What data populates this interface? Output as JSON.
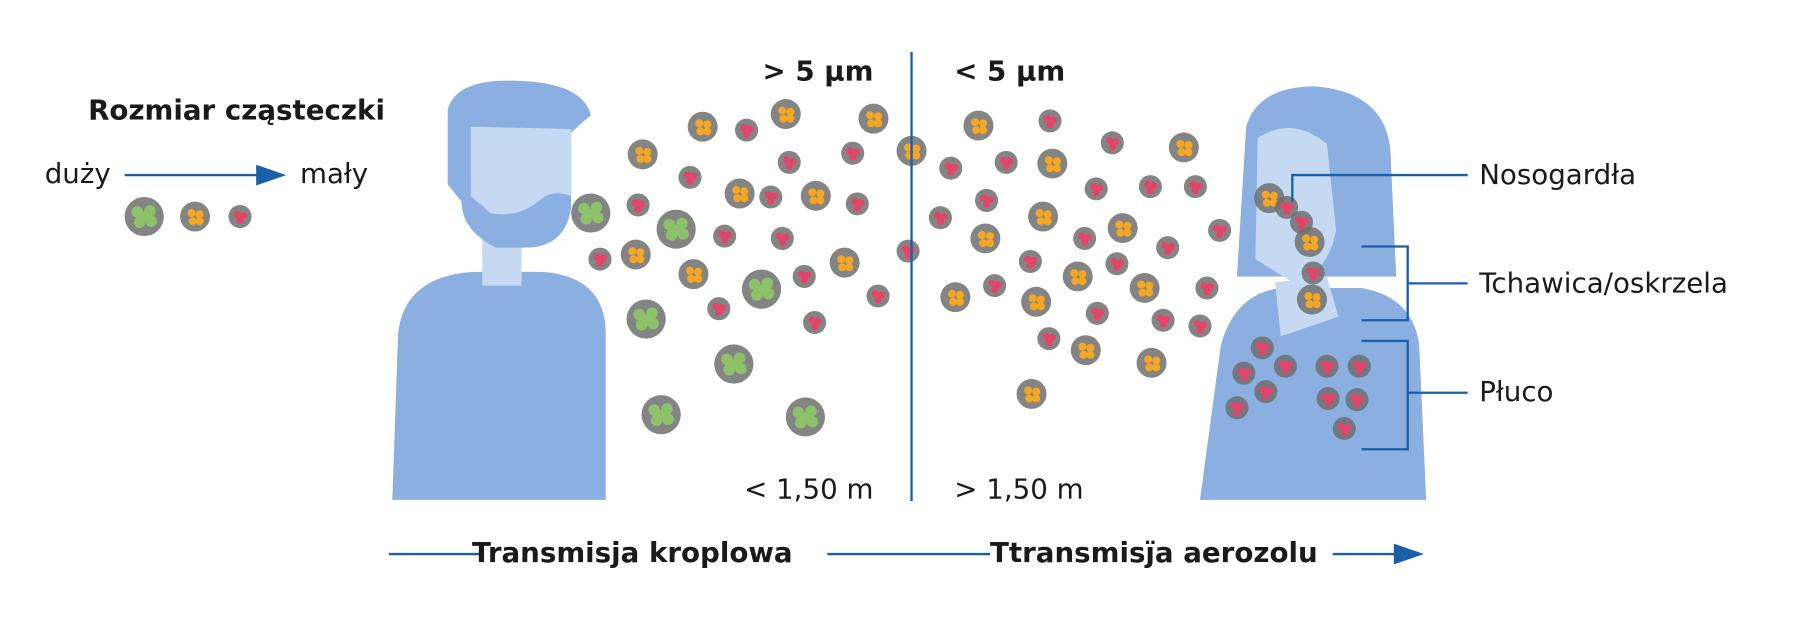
{
  "legend": {
    "title": "Rozmiar cząsteczki",
    "large": "duży",
    "small": "mały"
  },
  "size_labels": {
    "left": "> 5 µm",
    "right": "< 5 µm"
  },
  "distance_labels": {
    "left": "< 1,50 m",
    "right": "> 1,50 m"
  },
  "anatomy": [
    "Nosogardła",
    "Tchawica/oskrzela",
    "Płuco"
  ],
  "transmission": [
    "Transmisja kroplowa",
    "Ttransmisj̈a aerozolu"
  ]
}
